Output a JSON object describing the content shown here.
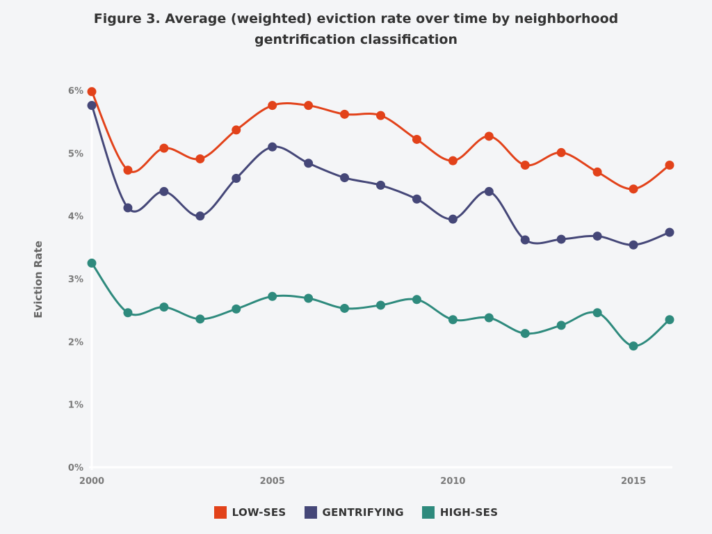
{
  "chart_data": {
    "type": "line",
    "title_line1": "Figure 3. Average (weighted) eviction rate over time by neighborhood",
    "title_line2": "gentrification classification",
    "xlabel": "",
    "ylabel": "Eviction Rate",
    "x": [
      2000,
      2001,
      2002,
      2003,
      2004,
      2005,
      2006,
      2007,
      2008,
      2009,
      2010,
      2011,
      2012,
      2013,
      2014,
      2015,
      2016
    ],
    "xlim": [
      2000,
      2016
    ],
    "ylim": [
      0,
      6
    ],
    "x_ticks": [
      2000,
      2005,
      2010,
      2015
    ],
    "x_tick_labels": [
      "2000",
      "2005",
      "2010",
      "2015"
    ],
    "y_ticks": [
      0,
      1,
      2,
      3,
      4,
      5,
      6
    ],
    "y_tick_labels": [
      "0%",
      "1%",
      "2%",
      "3%",
      "4%",
      "5%",
      "6%"
    ],
    "grid": false,
    "legend_position": "bottom",
    "series": [
      {
        "name": "LOW-SES",
        "color": "#e2421a",
        "values": [
          5.98,
          4.73,
          5.08,
          4.91,
          5.37,
          5.76,
          5.76,
          5.62,
          5.6,
          5.22,
          4.88,
          5.27,
          4.81,
          5.01,
          4.7,
          4.43,
          4.81
        ]
      },
      {
        "name": "GENTRIFYING",
        "color": "#454778",
        "values": [
          5.76,
          4.13,
          4.39,
          4.0,
          4.6,
          5.1,
          4.84,
          4.61,
          4.49,
          4.27,
          3.95,
          4.39,
          3.62,
          3.63,
          3.68,
          3.54,
          3.74
        ]
      },
      {
        "name": "HIGH-SES",
        "color": "#2e8a7d",
        "values": [
          3.25,
          2.46,
          2.55,
          2.36,
          2.52,
          2.72,
          2.69,
          2.53,
          2.58,
          2.67,
          2.35,
          2.38,
          2.13,
          2.26,
          2.46,
          1.93,
          2.35
        ]
      }
    ]
  }
}
